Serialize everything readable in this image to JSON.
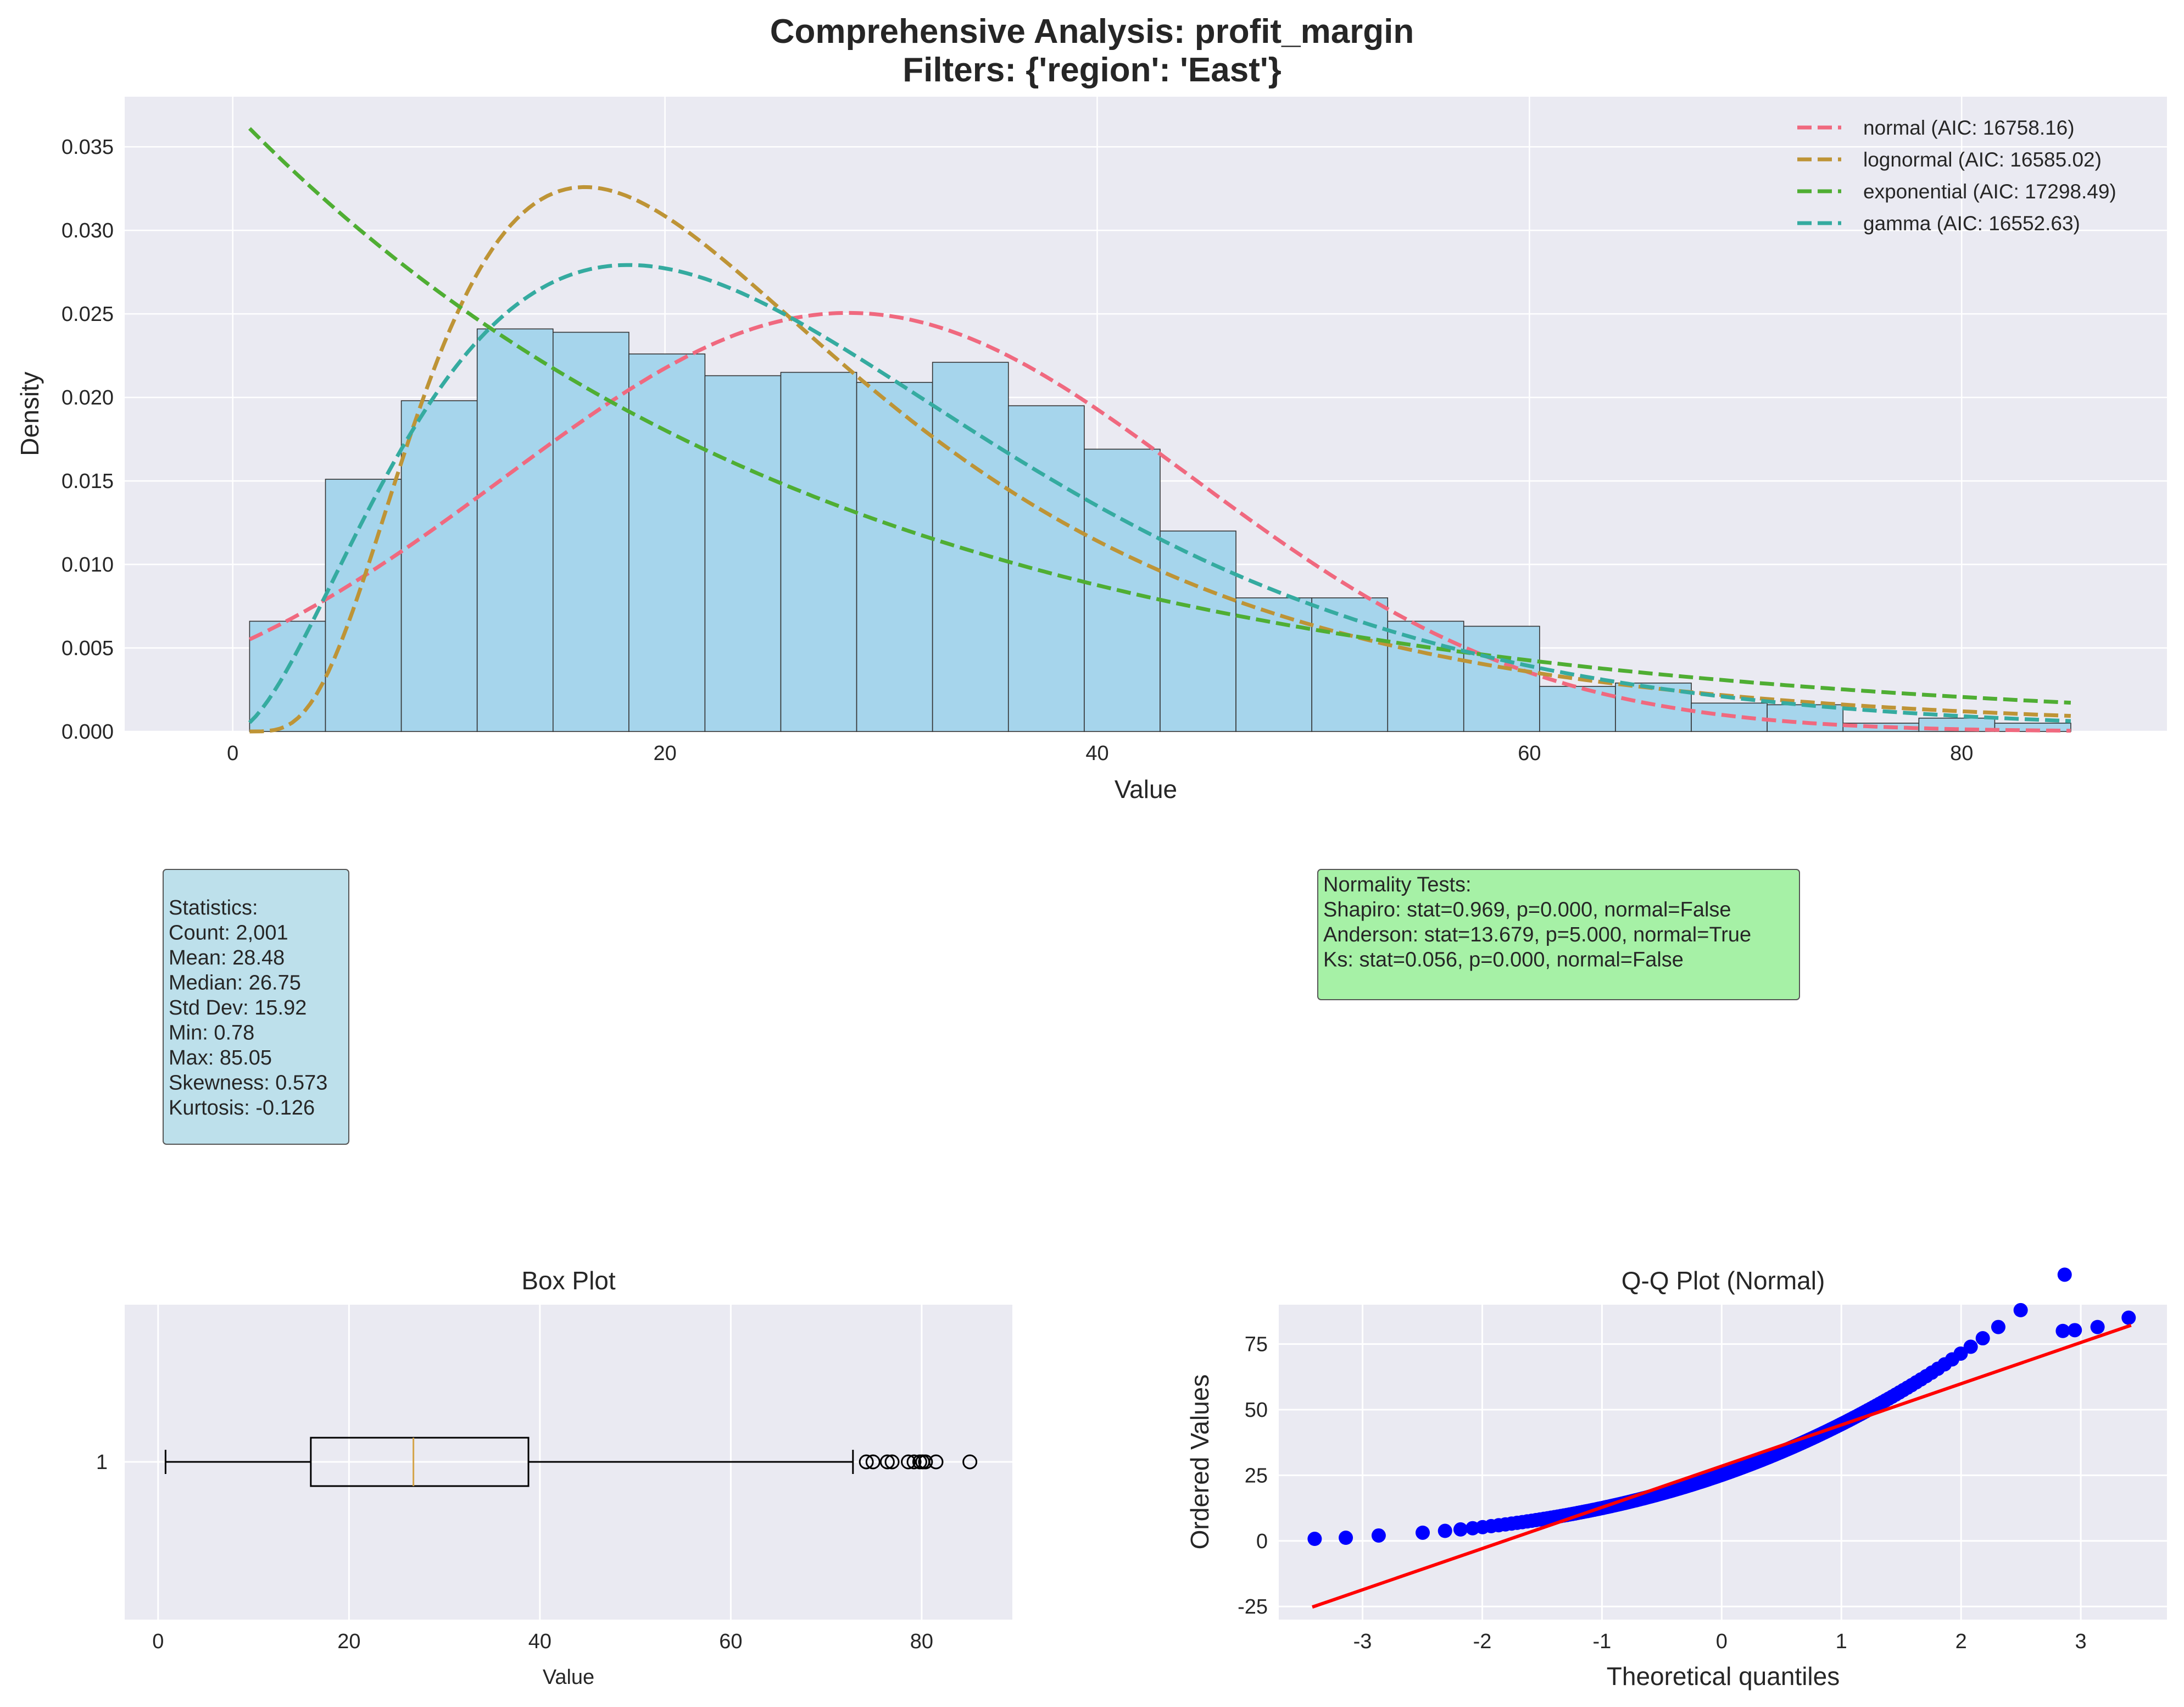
{
  "figure": {
    "title_line1": "Comprehensive Analysis: profit_margin",
    "title_line2": "Filters: {'region': 'East'}"
  },
  "chart_data": [
    {
      "type": "bar",
      "name": "histogram",
      "xlabel": "Value",
      "ylabel": "Density",
      "xlim": [
        -5,
        89.5
      ],
      "ylim": [
        0,
        0.038
      ],
      "xticks": [
        0,
        20,
        40,
        60,
        80
      ],
      "yticks": [
        0.0,
        0.005,
        0.01,
        0.015,
        0.02,
        0.025,
        0.03,
        0.035
      ],
      "bin_edges": [
        0.78,
        4.29,
        7.8,
        11.31,
        14.82,
        18.33,
        21.85,
        25.36,
        28.87,
        32.38,
        35.89,
        39.4,
        42.91,
        46.42,
        49.93,
        53.44,
        56.96,
        60.47,
        63.98,
        67.49,
        71.0,
        74.51,
        78.02,
        81.53,
        85.05
      ],
      "densities": [
        0.0066,
        0.0151,
        0.0198,
        0.0241,
        0.0239,
        0.0226,
        0.0213,
        0.0215,
        0.0209,
        0.0221,
        0.0195,
        0.0169,
        0.012,
        0.008,
        0.008,
        0.0066,
        0.0063,
        0.0027,
        0.0029,
        0.0017,
        0.0016,
        0.0005,
        0.0008,
        0.0005
      ],
      "bar_color": "#a6d5ec",
      "grid": true,
      "legend_position": "top-right",
      "series": [
        {
          "name": "normal (AIC: 16758.16)",
          "dist": "normal",
          "mean": 28.48,
          "std": 15.92,
          "color": "#f0697f"
        },
        {
          "name": "lognormal (AIC: 16585.02)",
          "dist": "lognormal",
          "mu": 3.175,
          "sigma": 0.62,
          "color": "#be9436"
        },
        {
          "name": "exponential (AIC: 17298.49)",
          "dist": "exponential",
          "loc": 0.78,
          "scale": 27.7,
          "color": "#4fae33"
        },
        {
          "name": "gamma (AIC: 16552.63)",
          "dist": "gamma",
          "shape": 2.8,
          "scale": 10.17,
          "color": "#35aba0"
        }
      ],
      "curve_x_range": [
        0.78,
        85.05
      ]
    },
    {
      "type": "box",
      "title": "Box Plot",
      "xlabel": "Value",
      "ytick": "1",
      "xlim": [
        -3.5,
        89.5
      ],
      "xticks": [
        0,
        20,
        40,
        60,
        80
      ],
      "whisker_low": 0.78,
      "q1": 16.0,
      "median": 26.75,
      "q3": 38.8,
      "whisker_high": 72.8,
      "outliers": [
        74.2,
        74.9,
        76.4,
        76.9,
        78.6,
        79.2,
        79.8,
        80.1,
        80.4,
        81.5,
        85.05
      ],
      "median_color": "#d4a44a"
    },
    {
      "type": "scatter",
      "title": "Q-Q Plot (Normal)",
      "xlabel": "Theoretical quantiles",
      "ylabel": "Ordered Values",
      "xlim": [
        -3.7,
        3.72
      ],
      "ylim": [
        -30,
        90
      ],
      "xticks": [
        -3,
        -2,
        -1,
        0,
        1,
        2,
        3
      ],
      "yticks": [
        -25,
        0,
        25,
        50,
        75
      ],
      "point_color": "#0000ff",
      "line_color": "#ff0000",
      "fit_line": {
        "slope": 15.7,
        "intercept": 28.48,
        "x_range": [
          -3.42,
          3.42
        ]
      },
      "distribution": {
        "dist": "gamma",
        "shape": 2.8,
        "scale": 10.17,
        "n": 2001,
        "min": 0.78,
        "max": 85.05
      }
    }
  ],
  "stats_box": {
    "lines": [
      "Statistics:",
      "Count: 2,001",
      "Mean: 28.48",
      "Median: 26.75",
      "Std Dev: 15.92",
      "Min: 0.78",
      "Max: 85.05",
      "Skewness: 0.573",
      "Kurtosis: -0.126"
    ],
    "bg_color": "#add8e6"
  },
  "normality_box": {
    "lines": [
      "Normality Tests:",
      "Shapiro: stat=0.969, p=0.000, normal=False",
      "Anderson: stat=13.679, p=5.000, normal=True",
      "Ks: stat=0.056, p=0.000, normal=False"
    ],
    "bg_color": "#90ee90"
  }
}
